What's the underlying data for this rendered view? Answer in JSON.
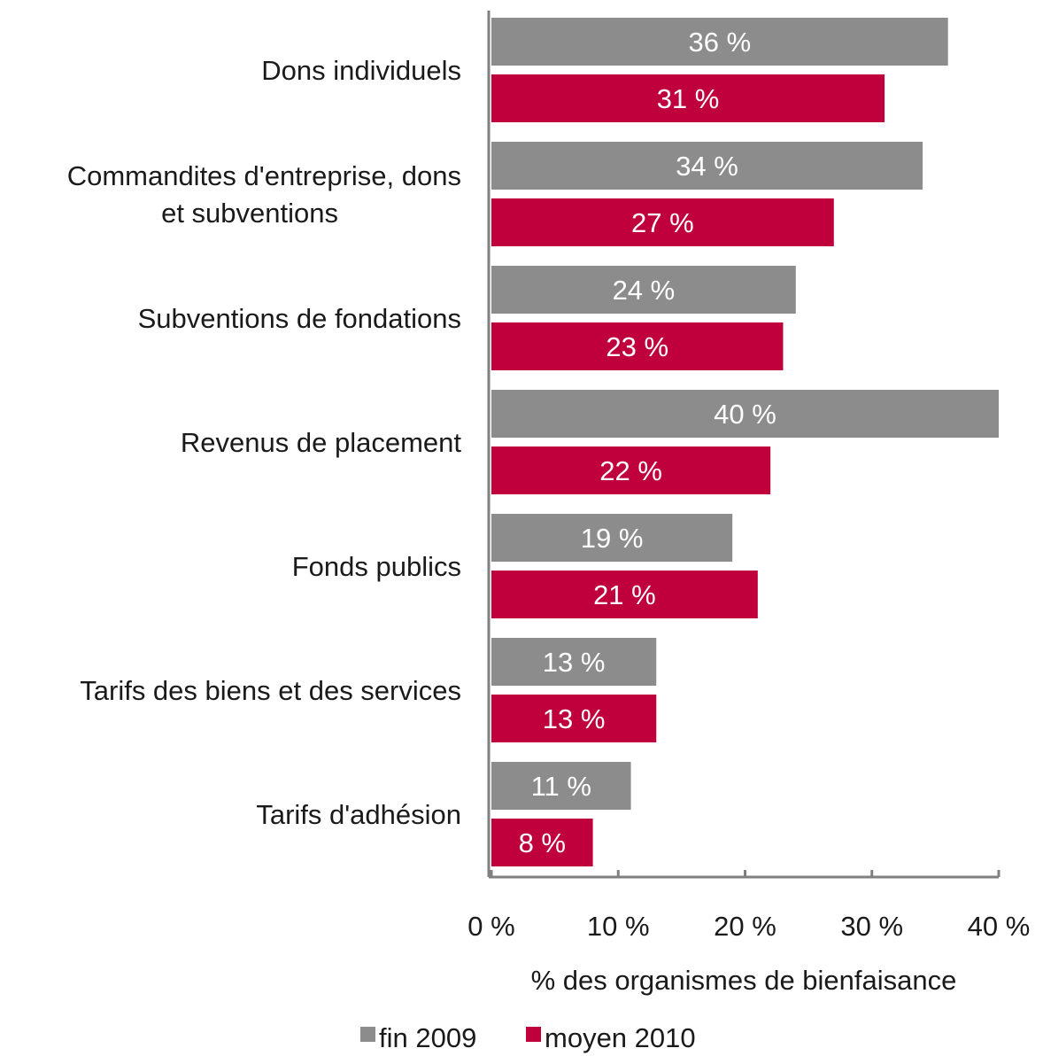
{
  "chart_data": {
    "type": "bar",
    "orientation": "horizontal",
    "categories": [
      [
        "Dons individuels"
      ],
      [
        "Commandites d'entreprise, dons",
        "et subventions"
      ],
      [
        "Subventions de fondations"
      ],
      [
        "Revenus de placement"
      ],
      [
        "Fonds publics"
      ],
      [
        "Tarifs des biens et des services"
      ],
      [
        "Tarifs d'adhésion"
      ]
    ],
    "series": [
      {
        "name": "fin 2009",
        "color": "#8c8c8c",
        "values": [
          36,
          34,
          24,
          40,
          19,
          13,
          11
        ]
      },
      {
        "name": "moyen 2010",
        "color": "#c0003c",
        "values": [
          31,
          27,
          23,
          22,
          21,
          13,
          8
        ]
      }
    ],
    "data_labels": [
      [
        "36 %",
        "34 %",
        "24 %",
        "40 %",
        "19 %",
        "13 %",
        "11 %"
      ],
      [
        "31 %",
        "27 %",
        "23 %",
        "22 %",
        "21 %",
        "13 %",
        "8 %"
      ]
    ],
    "xlim": [
      0,
      40
    ],
    "xticks": [
      0,
      10,
      20,
      30,
      40
    ],
    "xtick_labels": [
      "0 %",
      "10 %",
      "20 %",
      "30 %",
      "40 %"
    ],
    "xlabel": "% des organismes de bienfaisance",
    "ylabel": "",
    "title": "",
    "grid": false,
    "legend": {
      "placement": "bottom-center"
    }
  }
}
